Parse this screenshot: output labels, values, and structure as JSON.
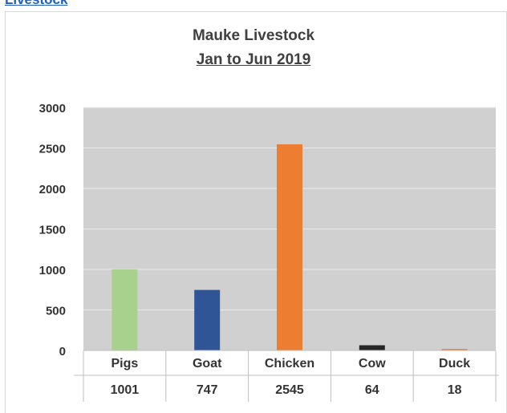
{
  "link_text": "Livestock",
  "chart_data": {
    "type": "bar",
    "title": "Mauke Livestock",
    "subtitle": "Jan to Jun 2019",
    "categories": [
      "Pigs",
      "Goat",
      "Chicken",
      "Cow",
      "Duck"
    ],
    "values": [
      1001,
      747,
      2545,
      64,
      18
    ],
    "value_labels": [
      "1001",
      "747",
      "2545",
      "64",
      "18"
    ],
    "y_ticks": [
      "0",
      "500",
      "1000",
      "1500",
      "2000",
      "2500",
      "3000"
    ],
    "ylim": [
      0,
      3000
    ],
    "grid": true,
    "legend": "none",
    "data_table": true,
    "colors": [
      "#a9d18e",
      "#2f5597",
      "#ed7d31",
      "#262626",
      "#ed7d31"
    ],
    "plot_background": "#d0d0d0"
  }
}
